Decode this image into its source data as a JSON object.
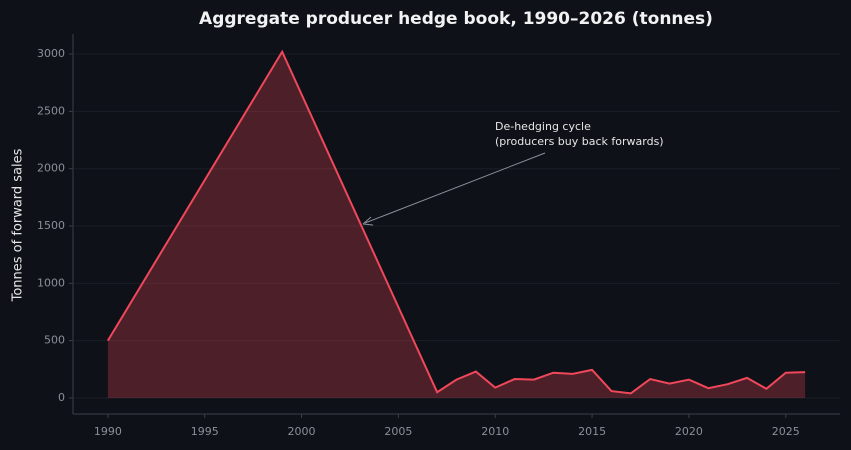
{
  "chart_data": {
    "type": "area-line",
    "title": "Aggregate producer hedge book, 1990–2026 (tonnes)",
    "ylabel": "Tonnes of forward sales",
    "annotation": "De-hedging cycle\n(producers buy back forwards)",
    "x": [
      1990,
      1999,
      2007,
      2008,
      2009,
      2010,
      2011,
      2012,
      2013,
      2014,
      2015,
      2016,
      2017,
      2018,
      2019,
      2020,
      2021,
      2022,
      2023,
      2024,
      2025,
      2026
    ],
    "series": [
      {
        "name": "Hedge book",
        "color": "#f0485a",
        "values": [
          500,
          3020,
          50,
          160,
          230,
          90,
          165,
          160,
          220,
          210,
          245,
          60,
          40,
          165,
          125,
          160,
          85,
          120,
          175,
          80,
          220,
          225
        ]
      }
    ],
    "xlim": [
      1988.2,
      2027.8
    ],
    "xticks": [
      1990,
      1995,
      2000,
      2005,
      2010,
      2015,
      2020,
      2025
    ],
    "ylim": [
      -140,
      3175
    ],
    "yticks": [
      0,
      500,
      1000,
      1500,
      2000,
      2500,
      3000
    ],
    "grid": true
  }
}
